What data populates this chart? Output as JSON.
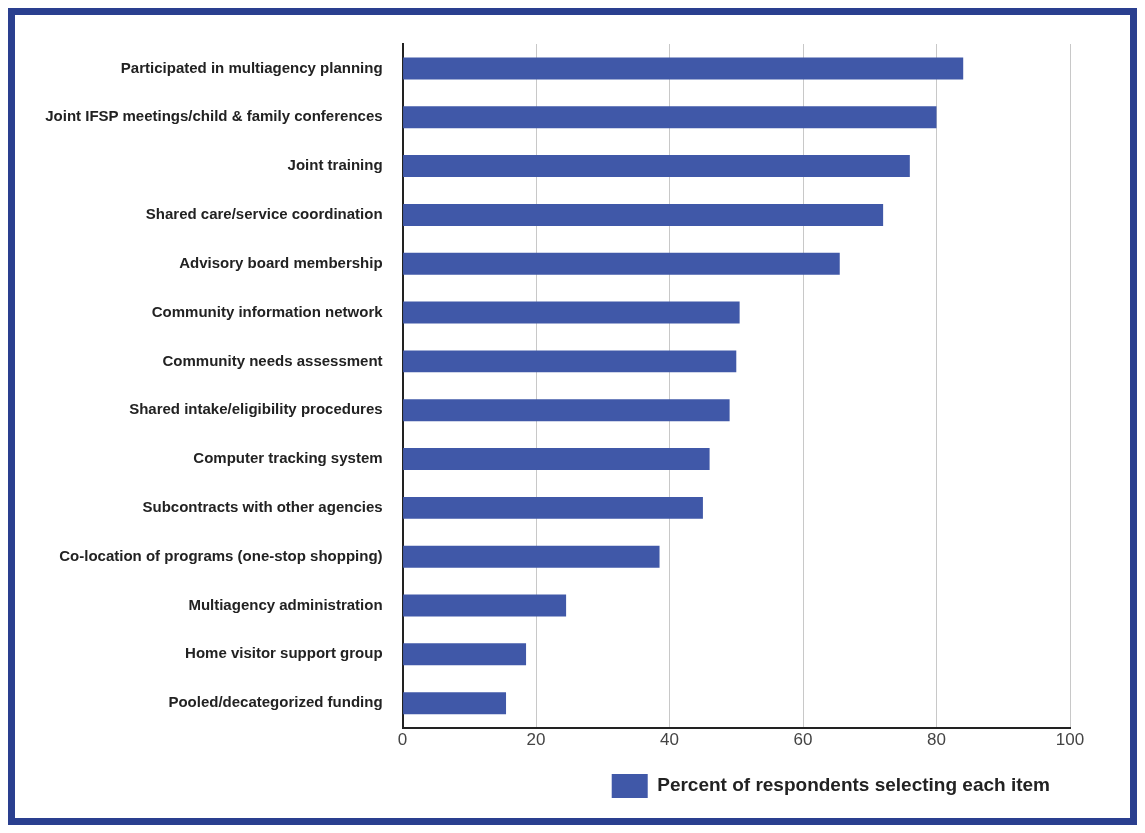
{
  "chart_data": {
    "type": "bar",
    "orientation": "horizontal",
    "categories": [
      "Participated in multiagency planning",
      "Joint IFSP meetings/child & family conferences",
      "Joint training",
      "Shared care/service coordination",
      "Advisory board membership",
      "Community information network",
      "Community needs assessment",
      "Shared intake/eligibility procedures",
      "Computer tracking system",
      "Subcontracts with other agencies",
      "Co-location of programs (one-stop shopping)",
      "Multiagency administration",
      "Home visitor support group",
      "Pooled/decategorized funding"
    ],
    "series": [
      {
        "name": "Percent of respondents selecting each item",
        "color": "#4058a8",
        "values": [
          84,
          80,
          76,
          72,
          65.5,
          50.5,
          50,
          49,
          46,
          45,
          38.5,
          24.5,
          18.5,
          15.5
        ]
      }
    ],
    "xlim": [
      0,
      100
    ],
    "xticks": [
      0,
      20,
      40,
      60,
      80,
      100
    ],
    "grid": "x",
    "legend": "bottom"
  }
}
